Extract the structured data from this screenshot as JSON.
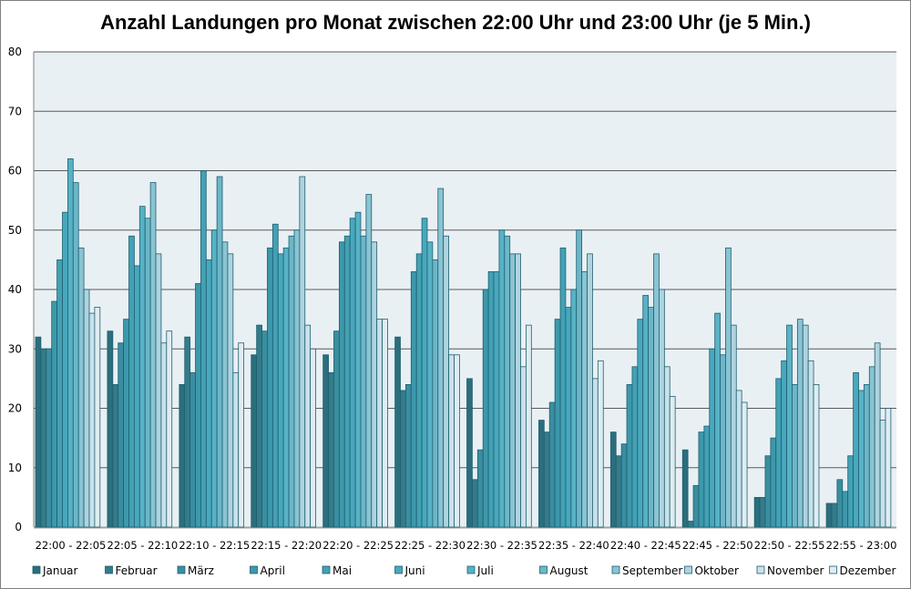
{
  "chart_data": {
    "type": "bar",
    "title": "Anzahl Landungen pro Monat zwischen 22:00 Uhr und 23:00 Uhr (je 5 Min.)",
    "xlabel": "",
    "ylabel": "",
    "ylim": [
      0,
      80
    ],
    "yticks": [
      0,
      10,
      20,
      30,
      40,
      50,
      60,
      70,
      80
    ],
    "grid": true,
    "legend_position": "bottom",
    "categories": [
      "22:00 - 22:05",
      "22:05 - 22:10",
      "22:10 - 22:15",
      "22:15 - 22:20",
      "22:20 - 22:25",
      "22:25 - 22:30",
      "22:30 - 22:35",
      "22:35 - 22:40",
      "22:40 - 22:45",
      "22:45 - 22:50",
      "22:50 - 22:55",
      "22:55 - 23:00"
    ],
    "series": [
      {
        "name": "Januar",
        "color": "#2b6e7d",
        "values": [
          32,
          33,
          24,
          29,
          29,
          32,
          25,
          18,
          16,
          13,
          5,
          4
        ]
      },
      {
        "name": "Februar",
        "color": "#347b8b",
        "values": [
          30,
          24,
          32,
          34,
          26,
          23,
          8,
          16,
          12,
          1,
          5,
          4
        ]
      },
      {
        "name": "März",
        "color": "#3a8ea0",
        "values": [
          30,
          31,
          26,
          33,
          33,
          24,
          13,
          21,
          14,
          7,
          12,
          8
        ]
      },
      {
        "name": "April",
        "color": "#3d98ab",
        "values": [
          38,
          35,
          41,
          47,
          48,
          43,
          40,
          35,
          24,
          16,
          15,
          6
        ]
      },
      {
        "name": "Mai",
        "color": "#42a1b5",
        "values": [
          45,
          49,
          60,
          51,
          49,
          46,
          43,
          47,
          27,
          17,
          25,
          12
        ]
      },
      {
        "name": "Juni",
        "color": "#48a8bd",
        "values": [
          53,
          44,
          45,
          46,
          52,
          52,
          43,
          37,
          35,
          30,
          28,
          26
        ]
      },
      {
        "name": "Juli",
        "color": "#58b2c6",
        "values": [
          62,
          54,
          50,
          47,
          53,
          48,
          50,
          40,
          39,
          36,
          34,
          23
        ]
      },
      {
        "name": "August",
        "color": "#6bb7c9",
        "values": [
          58,
          52,
          59,
          49,
          49,
          45,
          49,
          50,
          37,
          29,
          24,
          24
        ]
      },
      {
        "name": "September",
        "color": "#8ac4d3",
        "values": [
          47,
          58,
          48,
          50,
          56,
          57,
          46,
          43,
          46,
          47,
          35,
          27
        ]
      },
      {
        "name": "Oktober",
        "color": "#aed3df",
        "values": [
          40,
          46,
          46,
          59,
          48,
          49,
          46,
          46,
          40,
          34,
          34,
          31
        ]
      },
      {
        "name": "November",
        "color": "#c9e1ea",
        "values": [
          36,
          31,
          26,
          34,
          35,
          29,
          27,
          25,
          27,
          23,
          28,
          18
        ]
      },
      {
        "name": "Dezember",
        "color": "#dfedf2",
        "values": [
          37,
          33,
          31,
          30,
          35,
          29,
          34,
          28,
          22,
          21,
          24,
          20
        ]
      }
    ]
  }
}
